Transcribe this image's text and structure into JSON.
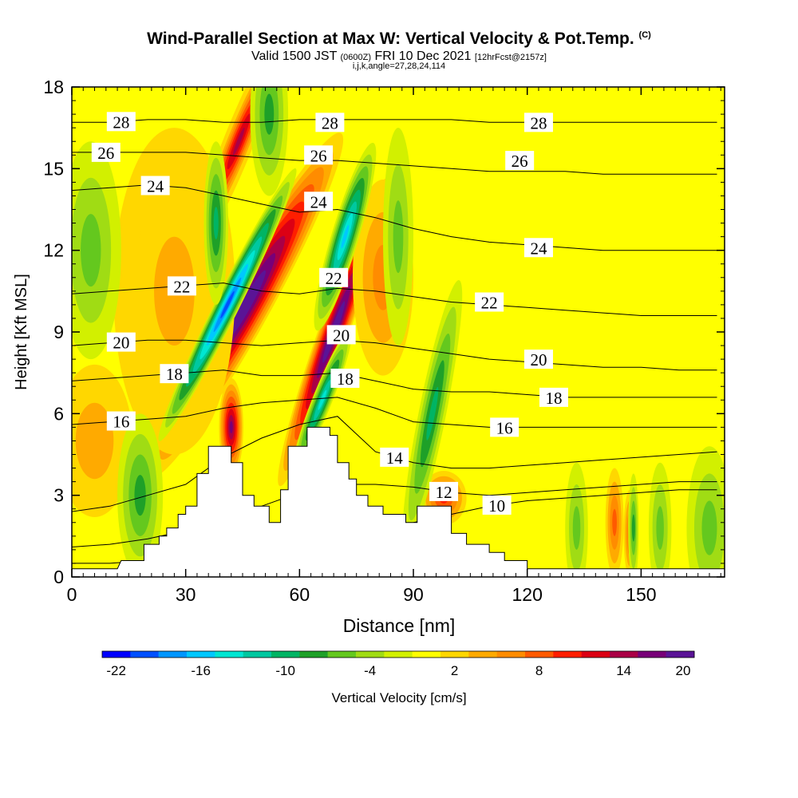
{
  "title": {
    "main": "Wind-Parallel Section at Max W: Vertical Velocity & Pot.Temp.",
    "copyright": "(C)",
    "valid_prefix": "Valid 1500 JST",
    "valid_utc": "(0600Z)",
    "valid_date": "FRI 10 Dec 2021",
    "forecast": "[12hrFcst@2157z]",
    "indices": "i,j,k,angle=27,28,24,114"
  },
  "chart_data": {
    "type": "heatmap",
    "xlabel": "Distance [nm]",
    "ylabel": "Height [Kft MSL]",
    "xlim": [
      0,
      172
    ],
    "ylim": [
      0,
      18
    ],
    "x_ticks": [
      0,
      30,
      60,
      90,
      120,
      150
    ],
    "y_ticks": [
      0,
      3,
      6,
      9,
      12,
      15,
      18
    ],
    "colorbar": {
      "label": "Vertical Velocity [cm/s]",
      "ticks": [
        "-22",
        "-16",
        "-10",
        "-4",
        "2",
        "8",
        "14",
        "20"
      ],
      "colors": [
        "#0000ff",
        "#0050ff",
        "#0096ff",
        "#00c8ff",
        "#00e6d2",
        "#00c8a0",
        "#00b464",
        "#1ea028",
        "#64c81e",
        "#a0dc14",
        "#d2f000",
        "#ffff00",
        "#ffd700",
        "#ffaa00",
        "#ff8c00",
        "#ff5a00",
        "#ff1e00",
        "#dc0014",
        "#aa0046",
        "#780078",
        "#5a1496"
      ]
    },
    "terrain_kft": [
      [
        0,
        0.3
      ],
      [
        12,
        0.3
      ],
      [
        13,
        0.6
      ],
      [
        19,
        0.6
      ],
      [
        19,
        1.2
      ],
      [
        23,
        1.2
      ],
      [
        23,
        1.5
      ],
      [
        25,
        1.5
      ],
      [
        25,
        1.8
      ],
      [
        28,
        1.8
      ],
      [
        28,
        2.3
      ],
      [
        30,
        2.3
      ],
      [
        30,
        2.6
      ],
      [
        33,
        2.6
      ],
      [
        33,
        3.8
      ],
      [
        36,
        3.8
      ],
      [
        36,
        4.8
      ],
      [
        42,
        4.8
      ],
      [
        42,
        4.2
      ],
      [
        45,
        4.2
      ],
      [
        45,
        3.0
      ],
      [
        48,
        3.0
      ],
      [
        48,
        2.6
      ],
      [
        52,
        2.6
      ],
      [
        52,
        2.0
      ],
      [
        55,
        2.0
      ],
      [
        55,
        3.2
      ],
      [
        57,
        3.2
      ],
      [
        57,
        4.8
      ],
      [
        62,
        4.8
      ],
      [
        62,
        5.5
      ],
      [
        68,
        5.5
      ],
      [
        68,
        5.2
      ],
      [
        70,
        5.2
      ],
      [
        70,
        4.2
      ],
      [
        73,
        4.2
      ],
      [
        73,
        3.6
      ],
      [
        75,
        3.6
      ],
      [
        75,
        3.0
      ],
      [
        78,
        3.0
      ],
      [
        78,
        2.6
      ],
      [
        82,
        2.6
      ],
      [
        82,
        2.3
      ],
      [
        88,
        2.3
      ],
      [
        88,
        2.0
      ],
      [
        91,
        2.0
      ],
      [
        91,
        2.6
      ],
      [
        100,
        2.6
      ],
      [
        100,
        1.6
      ],
      [
        104,
        1.6
      ],
      [
        104,
        1.2
      ],
      [
        110,
        1.2
      ],
      [
        110,
        0.9
      ],
      [
        114,
        0.9
      ],
      [
        114,
        0.6
      ],
      [
        120,
        0.6
      ],
      [
        120,
        0.3
      ]
    ],
    "updrafts": [
      {
        "x": 46,
        "y": 10.0,
        "sx": 3.2,
        "sy": 3.6,
        "w": 20,
        "tilt": -0.55
      },
      {
        "x": 44,
        "y": 16.0,
        "sx": 2.0,
        "sy": 2.2,
        "w": 15,
        "tilt": -0.4
      },
      {
        "x": 42,
        "y": 5.5,
        "sx": 1.6,
        "sy": 0.9,
        "w": 16,
        "tilt": 0
      },
      {
        "x": 69,
        "y": 9.0,
        "sx": 2.0,
        "sy": 3.0,
        "w": 20,
        "tilt": -0.35
      },
      {
        "x": 82,
        "y": 11.0,
        "sx": 4.0,
        "sy": 1.8,
        "w": 6,
        "tilt": 0
      },
      {
        "x": 27,
        "y": 10.5,
        "sx": 8.0,
        "sy": 3.0,
        "w": 5,
        "tilt": 0
      },
      {
        "x": 98,
        "y": 2.9,
        "sx": 3.0,
        "sy": 0.5,
        "w": 10,
        "tilt": 0
      },
      {
        "x": 143,
        "y": 2.0,
        "sx": 1.2,
        "sy": 1.0,
        "w": 8,
        "tilt": 0
      },
      {
        "x": 147,
        "y": 1.6,
        "sx": 0.8,
        "sy": 0.8,
        "w": 8,
        "tilt": 0
      },
      {
        "x": 6,
        "y": 5.0,
        "sx": 5.0,
        "sy": 1.4,
        "w": 4,
        "tilt": 0
      }
    ],
    "downdrafts": [
      {
        "x": 41,
        "y": 10.0,
        "sx": 1.6,
        "sy": 2.8,
        "w": -20,
        "tilt": -0.5
      },
      {
        "x": 38,
        "y": 13.0,
        "sx": 1.6,
        "sy": 1.5,
        "w": -10,
        "tilt": 0
      },
      {
        "x": 72,
        "y": 12.5,
        "sx": 1.8,
        "sy": 1.8,
        "w": -16,
        "tilt": -0.3
      },
      {
        "x": 66,
        "y": 6.5,
        "sx": 1.3,
        "sy": 1.4,
        "w": -14,
        "tilt": -0.4
      },
      {
        "x": 95,
        "y": 6.0,
        "sx": 1.8,
        "sy": 2.5,
        "w": -9,
        "tilt": -0.2
      },
      {
        "x": 52,
        "y": 17.0,
        "sx": 2.5,
        "sy": 1.5,
        "w": -8,
        "tilt": 0
      },
      {
        "x": 86,
        "y": 12.5,
        "sx": 2.0,
        "sy": 2.0,
        "w": -6,
        "tilt": 0
      },
      {
        "x": 5,
        "y": 12.0,
        "sx": 4.0,
        "sy": 2.0,
        "w": -5,
        "tilt": 0
      },
      {
        "x": 18,
        "y": 3.0,
        "sx": 3.0,
        "sy": 1.5,
        "w": -7,
        "tilt": 0
      },
      {
        "x": 148,
        "y": 1.8,
        "sx": 0.7,
        "sy": 1.0,
        "w": -8,
        "tilt": 0
      },
      {
        "x": 133,
        "y": 1.8,
        "sx": 1.5,
        "sy": 1.2,
        "w": -5,
        "tilt": 0
      },
      {
        "x": 155,
        "y": 1.8,
        "sx": 1.5,
        "sy": 1.2,
        "w": -5,
        "tilt": 0
      },
      {
        "x": 168,
        "y": 1.8,
        "sx": 3.0,
        "sy": 1.5,
        "w": -5,
        "tilt": 0
      }
    ],
    "isentropes": [
      {
        "value": 10,
        "label_x": 112,
        "y": [
          0.5,
          0.5,
          0.6,
          0.7,
          0.8,
          1.0,
          1.2,
          1.4,
          1.6,
          2.0,
          2.3,
          2.6,
          2.8,
          2.9,
          3.0,
          3.1,
          3.2,
          3.2
        ]
      },
      {
        "value": 12,
        "label_x": 98,
        "y": [
          1.1,
          1.2,
          1.4,
          1.7,
          2.1,
          2.6,
          3.1,
          3.4,
          3.4,
          3.3,
          3.1,
          3.0,
          3.1,
          3.2,
          3.3,
          3.4,
          3.5,
          3.5
        ]
      },
      {
        "value": 14,
        "label_x": 85,
        "y": [
          2.4,
          2.6,
          3.0,
          3.4,
          4.4,
          5.1,
          5.6,
          5.9,
          4.6,
          4.2,
          4.0,
          4.0,
          4.1,
          4.2,
          4.3,
          4.4,
          4.5,
          4.6
        ]
      },
      {
        "value": 16,
        "label_x": 13,
        "y": [
          5.6,
          5.7,
          5.8,
          5.9,
          6.2,
          6.4,
          6.5,
          6.6,
          6.2,
          5.7,
          5.6,
          5.5,
          5.5,
          5.5,
          5.5,
          5.5,
          5.5,
          5.5
        ]
      },
      {
        "value": 18,
        "label_x": 27,
        "y": [
          7.2,
          7.3,
          7.4,
          7.5,
          7.6,
          7.4,
          7.4,
          7.5,
          7.2,
          6.9,
          6.8,
          6.8,
          6.7,
          6.6,
          6.6,
          6.6,
          6.6,
          6.6
        ]
      },
      {
        "value": 20,
        "label_x": 13,
        "y": [
          8.5,
          8.6,
          8.7,
          8.7,
          8.6,
          8.5,
          8.6,
          8.7,
          8.6,
          8.4,
          8.2,
          8.0,
          7.9,
          7.8,
          7.7,
          7.7,
          7.6,
          7.6
        ]
      },
      {
        "value": 22,
        "label_x": 29,
        "y": [
          10.4,
          10.5,
          10.6,
          10.7,
          10.8,
          10.5,
          10.4,
          10.6,
          10.5,
          10.3,
          10.1,
          10.0,
          9.9,
          9.8,
          9.7,
          9.6,
          9.6,
          9.6
        ]
      },
      {
        "value": 24,
        "label_x": 22,
        "y": [
          14.2,
          14.3,
          14.4,
          14.3,
          14.0,
          13.7,
          13.4,
          13.5,
          13.2,
          12.8,
          12.5,
          12.3,
          12.2,
          12.1,
          12.0,
          12.0,
          12.0,
          12.0
        ]
      },
      {
        "value": 26,
        "label_x": 9,
        "y": [
          15.6,
          15.6,
          15.6,
          15.6,
          15.5,
          15.4,
          15.3,
          15.3,
          15.2,
          15.1,
          15.0,
          14.9,
          14.9,
          14.9,
          14.8,
          14.8,
          14.8,
          14.8
        ]
      },
      {
        "value": 28,
        "label_x": 13,
        "y": [
          16.7,
          16.7,
          16.8,
          16.8,
          16.7,
          16.7,
          16.8,
          16.8,
          16.8,
          16.8,
          16.8,
          16.7,
          16.7,
          16.7,
          16.7,
          16.7,
          16.7,
          16.7
        ]
      }
    ],
    "extra_labels": [
      {
        "text": "28",
        "x": 68,
        "y": 16.7
      },
      {
        "text": "28",
        "x": 123,
        "y": 16.7
      },
      {
        "text": "26",
        "x": 65,
        "y": 15.5
      },
      {
        "text": "26",
        "x": 118,
        "y": 15.3
      },
      {
        "text": "24",
        "x": 65,
        "y": 13.8
      },
      {
        "text": "24",
        "x": 123,
        "y": 12.1
      },
      {
        "text": "22",
        "x": 69,
        "y": 11.0
      },
      {
        "text": "22",
        "x": 110,
        "y": 10.1
      },
      {
        "text": "20",
        "x": 71,
        "y": 8.9
      },
      {
        "text": "20",
        "x": 123,
        "y": 8.0
      },
      {
        "text": "18",
        "x": 72,
        "y": 7.3
      },
      {
        "text": "18",
        "x": 127,
        "y": 6.6
      },
      {
        "text": "16",
        "x": 114,
        "y": 5.5
      }
    ]
  }
}
